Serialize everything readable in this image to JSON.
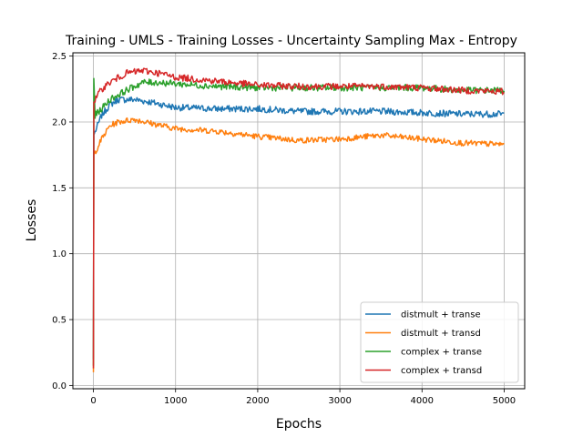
{
  "chart_data": {
    "type": "line",
    "title": "Training - UMLS - Training Losses - Uncertainty Sampling Max - Entropy",
    "xlabel": "Epochs",
    "ylabel": "Losses",
    "xlim": [
      -250,
      5250
    ],
    "ylim": [
      -0.025,
      2.525
    ],
    "grid": true,
    "legend_position": "lower-right",
    "x_ticks": [
      0,
      1000,
      2000,
      3000,
      4000,
      5000
    ],
    "y_ticks": [
      0.0,
      0.5,
      1.0,
      1.5,
      2.0,
      2.5
    ],
    "x_tick_labels": [
      "0",
      "1000",
      "2000",
      "3000",
      "4000",
      "5000"
    ],
    "y_tick_labels": [
      "0.0",
      "0.5",
      "1.0",
      "1.5",
      "2.0",
      "2.5"
    ],
    "series": [
      {
        "name": "distmult + transe",
        "color": "#1f77b4",
        "noise": 0.025,
        "points": [
          [
            0,
            0.2
          ],
          [
            5,
            1.9
          ],
          [
            100,
            2.05
          ],
          [
            200,
            2.13
          ],
          [
            300,
            2.17
          ],
          [
            500,
            2.17
          ],
          [
            700,
            2.15
          ],
          [
            1000,
            2.11
          ],
          [
            1500,
            2.1
          ],
          [
            2000,
            2.1
          ],
          [
            2500,
            2.08
          ],
          [
            3000,
            2.08
          ],
          [
            3500,
            2.08
          ],
          [
            4000,
            2.07
          ],
          [
            4500,
            2.06
          ],
          [
            5000,
            2.06
          ]
        ]
      },
      {
        "name": "distmult + transd",
        "color": "#ff7f0e",
        "noise": 0.022,
        "points": [
          [
            0,
            0.1
          ],
          [
            5,
            1.75
          ],
          [
            100,
            1.87
          ],
          [
            200,
            1.97
          ],
          [
            300,
            2.0
          ],
          [
            500,
            2.02
          ],
          [
            700,
            1.99
          ],
          [
            1000,
            1.95
          ],
          [
            1500,
            1.93
          ],
          [
            2000,
            1.89
          ],
          [
            2500,
            1.86
          ],
          [
            3000,
            1.87
          ],
          [
            3500,
            1.9
          ],
          [
            4000,
            1.87
          ],
          [
            4500,
            1.84
          ],
          [
            5000,
            1.83
          ]
        ]
      },
      {
        "name": "complex + transe",
        "color": "#2ca02c",
        "noise": 0.025,
        "points": [
          [
            0,
            0.15
          ],
          [
            5,
            2.33
          ],
          [
            20,
            2.05
          ],
          [
            100,
            2.1
          ],
          [
            200,
            2.17
          ],
          [
            400,
            2.24
          ],
          [
            600,
            2.3
          ],
          [
            800,
            2.3
          ],
          [
            1000,
            2.29
          ],
          [
            1500,
            2.27
          ],
          [
            2000,
            2.26
          ],
          [
            2500,
            2.26
          ],
          [
            3000,
            2.26
          ],
          [
            3500,
            2.26
          ],
          [
            4000,
            2.26
          ],
          [
            4500,
            2.24
          ],
          [
            5000,
            2.24
          ]
        ]
      },
      {
        "name": "complex + transd",
        "color": "#d62728",
        "noise": 0.025,
        "points": [
          [
            0,
            0.13
          ],
          [
            5,
            2.15
          ],
          [
            100,
            2.25
          ],
          [
            200,
            2.3
          ],
          [
            400,
            2.37
          ],
          [
            600,
            2.39
          ],
          [
            800,
            2.37
          ],
          [
            1000,
            2.34
          ],
          [
            1500,
            2.31
          ],
          [
            2000,
            2.28
          ],
          [
            2500,
            2.27
          ],
          [
            3000,
            2.27
          ],
          [
            3500,
            2.27
          ],
          [
            4000,
            2.26
          ],
          [
            4500,
            2.24
          ],
          [
            5000,
            2.23
          ]
        ]
      }
    ]
  }
}
